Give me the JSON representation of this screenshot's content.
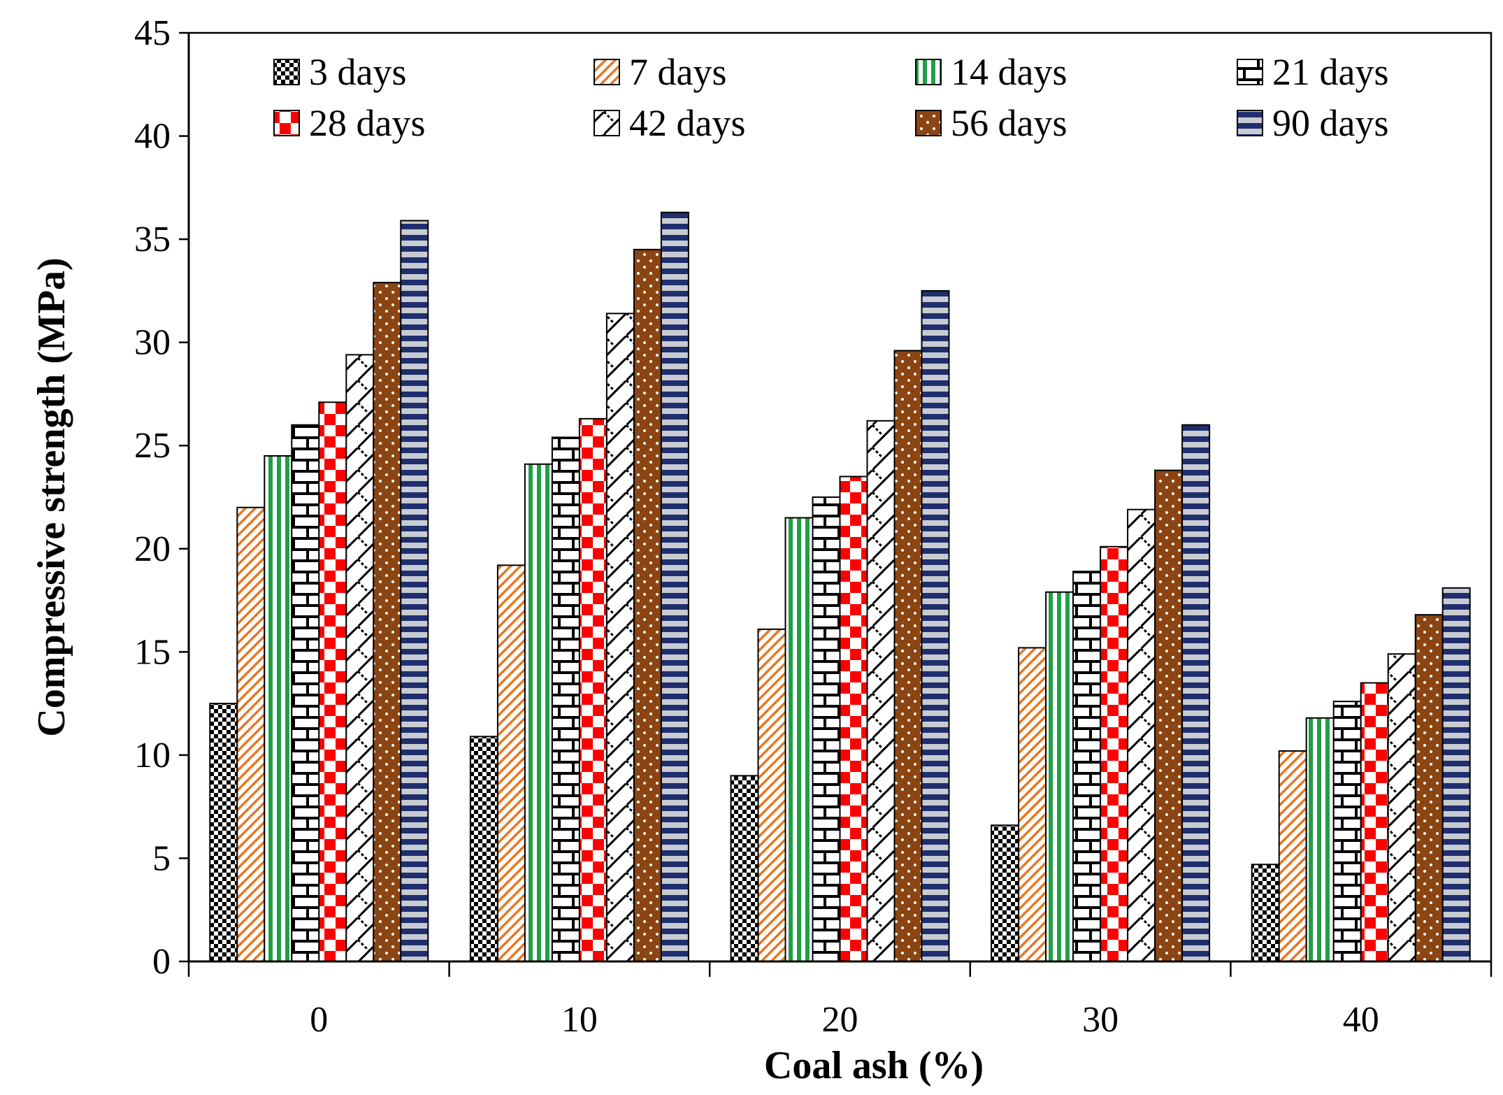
{
  "chart_data": {
    "type": "bar",
    "title": "",
    "xlabel": "Coal ash (%)",
    "ylabel": "Compressive strength (MPa)",
    "ylim": [
      0,
      45
    ],
    "yticks": [
      0,
      5,
      10,
      15,
      20,
      25,
      30,
      35,
      40,
      45
    ],
    "categories": [
      "0",
      "10",
      "20",
      "30",
      "40"
    ],
    "legend_position": "top",
    "grid": false,
    "series": [
      {
        "name": "3 days",
        "pattern": "checker-small",
        "color": "#000000",
        "values": [
          12.5,
          10.9,
          9.0,
          6.6,
          4.7
        ]
      },
      {
        "name": "7 days",
        "pattern": "diagonal",
        "color": "#e87722",
        "values": [
          22.0,
          19.2,
          16.1,
          15.2,
          10.2
        ]
      },
      {
        "name": "14 days",
        "pattern": "vertical",
        "color": "#1fa045",
        "values": [
          24.5,
          24.1,
          21.5,
          17.9,
          11.8
        ]
      },
      {
        "name": "21 days",
        "pattern": "brick",
        "color": "#000000",
        "values": [
          26.0,
          25.4,
          22.5,
          18.9,
          12.6
        ]
      },
      {
        "name": "28 days",
        "pattern": "checker-large",
        "color": "#ff0000",
        "values": [
          27.1,
          26.3,
          23.5,
          20.1,
          13.5
        ]
      },
      {
        "name": "42 days",
        "pattern": "zigzag",
        "color": "#000000",
        "values": [
          29.4,
          31.4,
          26.2,
          21.9,
          14.9
        ]
      },
      {
        "name": "56 days",
        "pattern": "dots",
        "color": "#8b4513",
        "values": [
          32.9,
          34.5,
          29.6,
          23.8,
          16.8
        ]
      },
      {
        "name": "90 days",
        "pattern": "horizontal",
        "color": "#1f2f6e",
        "values": [
          35.9,
          36.3,
          32.5,
          26.0,
          18.1
        ]
      }
    ]
  }
}
